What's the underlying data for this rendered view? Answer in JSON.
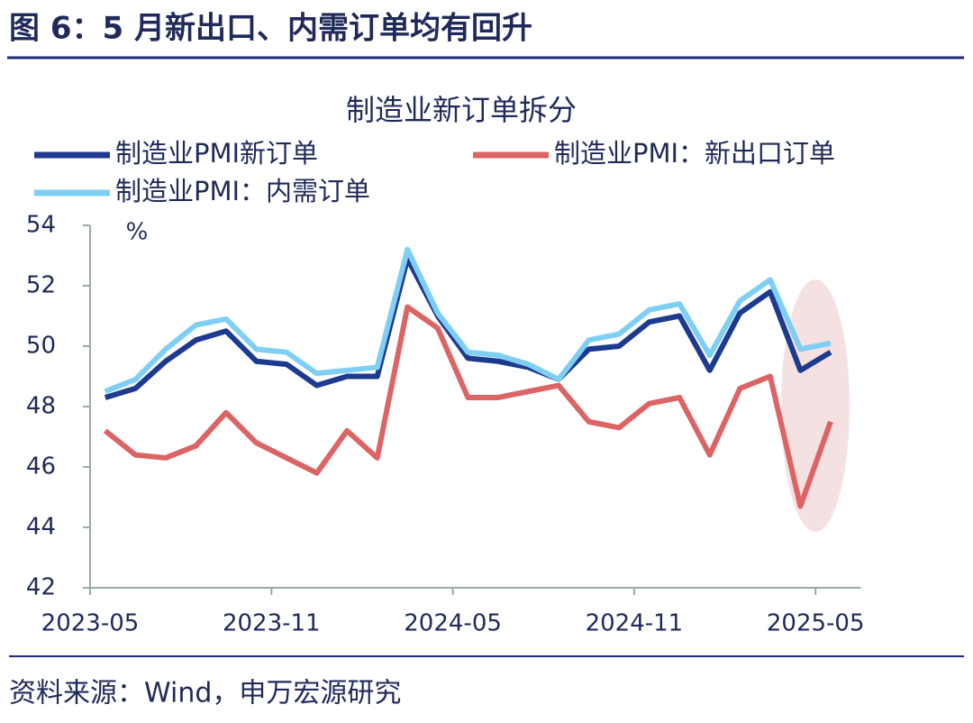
{
  "header": {
    "title": "图 6：5 月新出口、内需订单均有回升"
  },
  "chart_data": {
    "type": "line",
    "title": "制造业新订单拆分",
    "y_unit": "%",
    "categories": [
      "2023-05",
      null,
      null,
      null,
      null,
      null,
      "2023-11",
      null,
      null,
      null,
      null,
      null,
      "2024-05",
      null,
      null,
      null,
      null,
      null,
      "2024-11",
      null,
      null,
      null,
      null,
      null,
      "2025-05"
    ],
    "series": [
      {
        "name": "制造业PMI新订单",
        "color": "#1c3a8f",
        "values": [
          48.3,
          48.6,
          49.5,
          50.2,
          50.5,
          49.5,
          49.4,
          48.7,
          49.0,
          49.0,
          52.9,
          51.0,
          49.6,
          49.5,
          49.3,
          48.9,
          49.9,
          50.0,
          50.8,
          51.0,
          49.2,
          51.1,
          51.8,
          49.2,
          49.8
        ]
      },
      {
        "name": "制造业PMI：新出口订单",
        "color": "#dc6464",
        "values": [
          47.2,
          46.4,
          46.3,
          46.7,
          47.8,
          46.8,
          46.3,
          45.8,
          47.2,
          46.3,
          51.3,
          50.6,
          48.3,
          48.3,
          48.5,
          48.7,
          47.5,
          47.3,
          48.1,
          48.3,
          46.4,
          48.6,
          49.0,
          44.7,
          47.5
        ]
      },
      {
        "name": "制造业PMI：内需订单",
        "color": "#7fcff5",
        "values": [
          48.5,
          48.9,
          49.9,
          50.7,
          50.9,
          49.9,
          49.8,
          49.1,
          49.2,
          49.3,
          53.2,
          51.1,
          49.8,
          49.7,
          49.4,
          48.9,
          50.2,
          50.4,
          51.2,
          51.4,
          49.7,
          51.5,
          52.2,
          49.9,
          50.1
        ]
      }
    ],
    "ylim": [
      42,
      54
    ],
    "yticks": [
      42,
      44,
      46,
      48,
      50,
      52,
      54
    ]
  },
  "footer": {
    "source": "资料来源：Wind，申万宏源研究"
  }
}
